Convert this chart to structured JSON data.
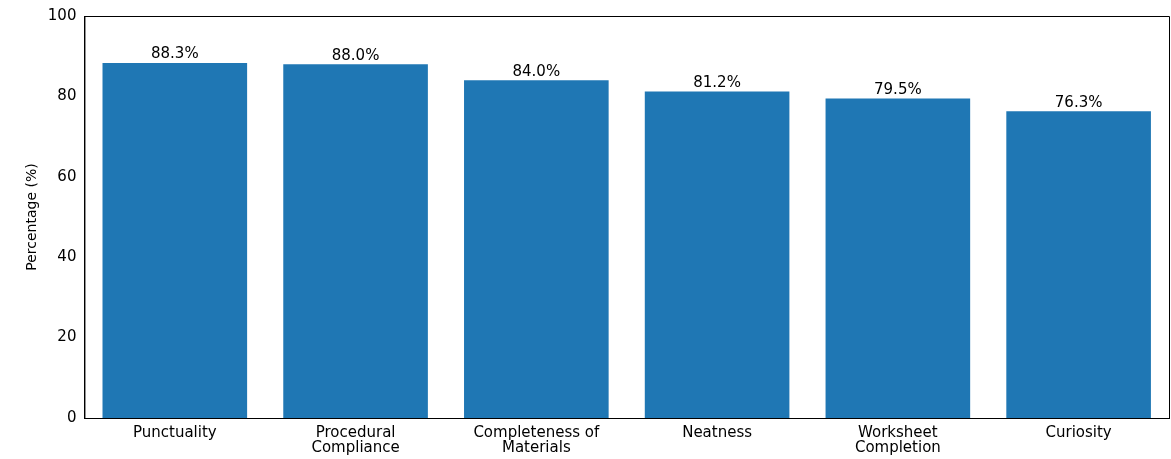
{
  "chart_data": {
    "type": "bar",
    "ylabel": "Percentage (%)",
    "categories": [
      "Punctuality",
      "Procedural Compliance",
      "Completeness of Materials",
      "Neatness",
      "Worksheet Completion",
      "Curiosity"
    ],
    "values": [
      88.3,
      88.0,
      84.0,
      81.2,
      79.5,
      76.3
    ],
    "value_labels": [
      "88.3%",
      "88.0%",
      "84.0%",
      "81.2%",
      "79.5%",
      "76.3%"
    ],
    "color": "#1f77b4",
    "ylim": [
      0,
      100
    ],
    "yticks": [
      0,
      20,
      40,
      60,
      80,
      100
    ],
    "grid": false,
    "legend": false
  }
}
